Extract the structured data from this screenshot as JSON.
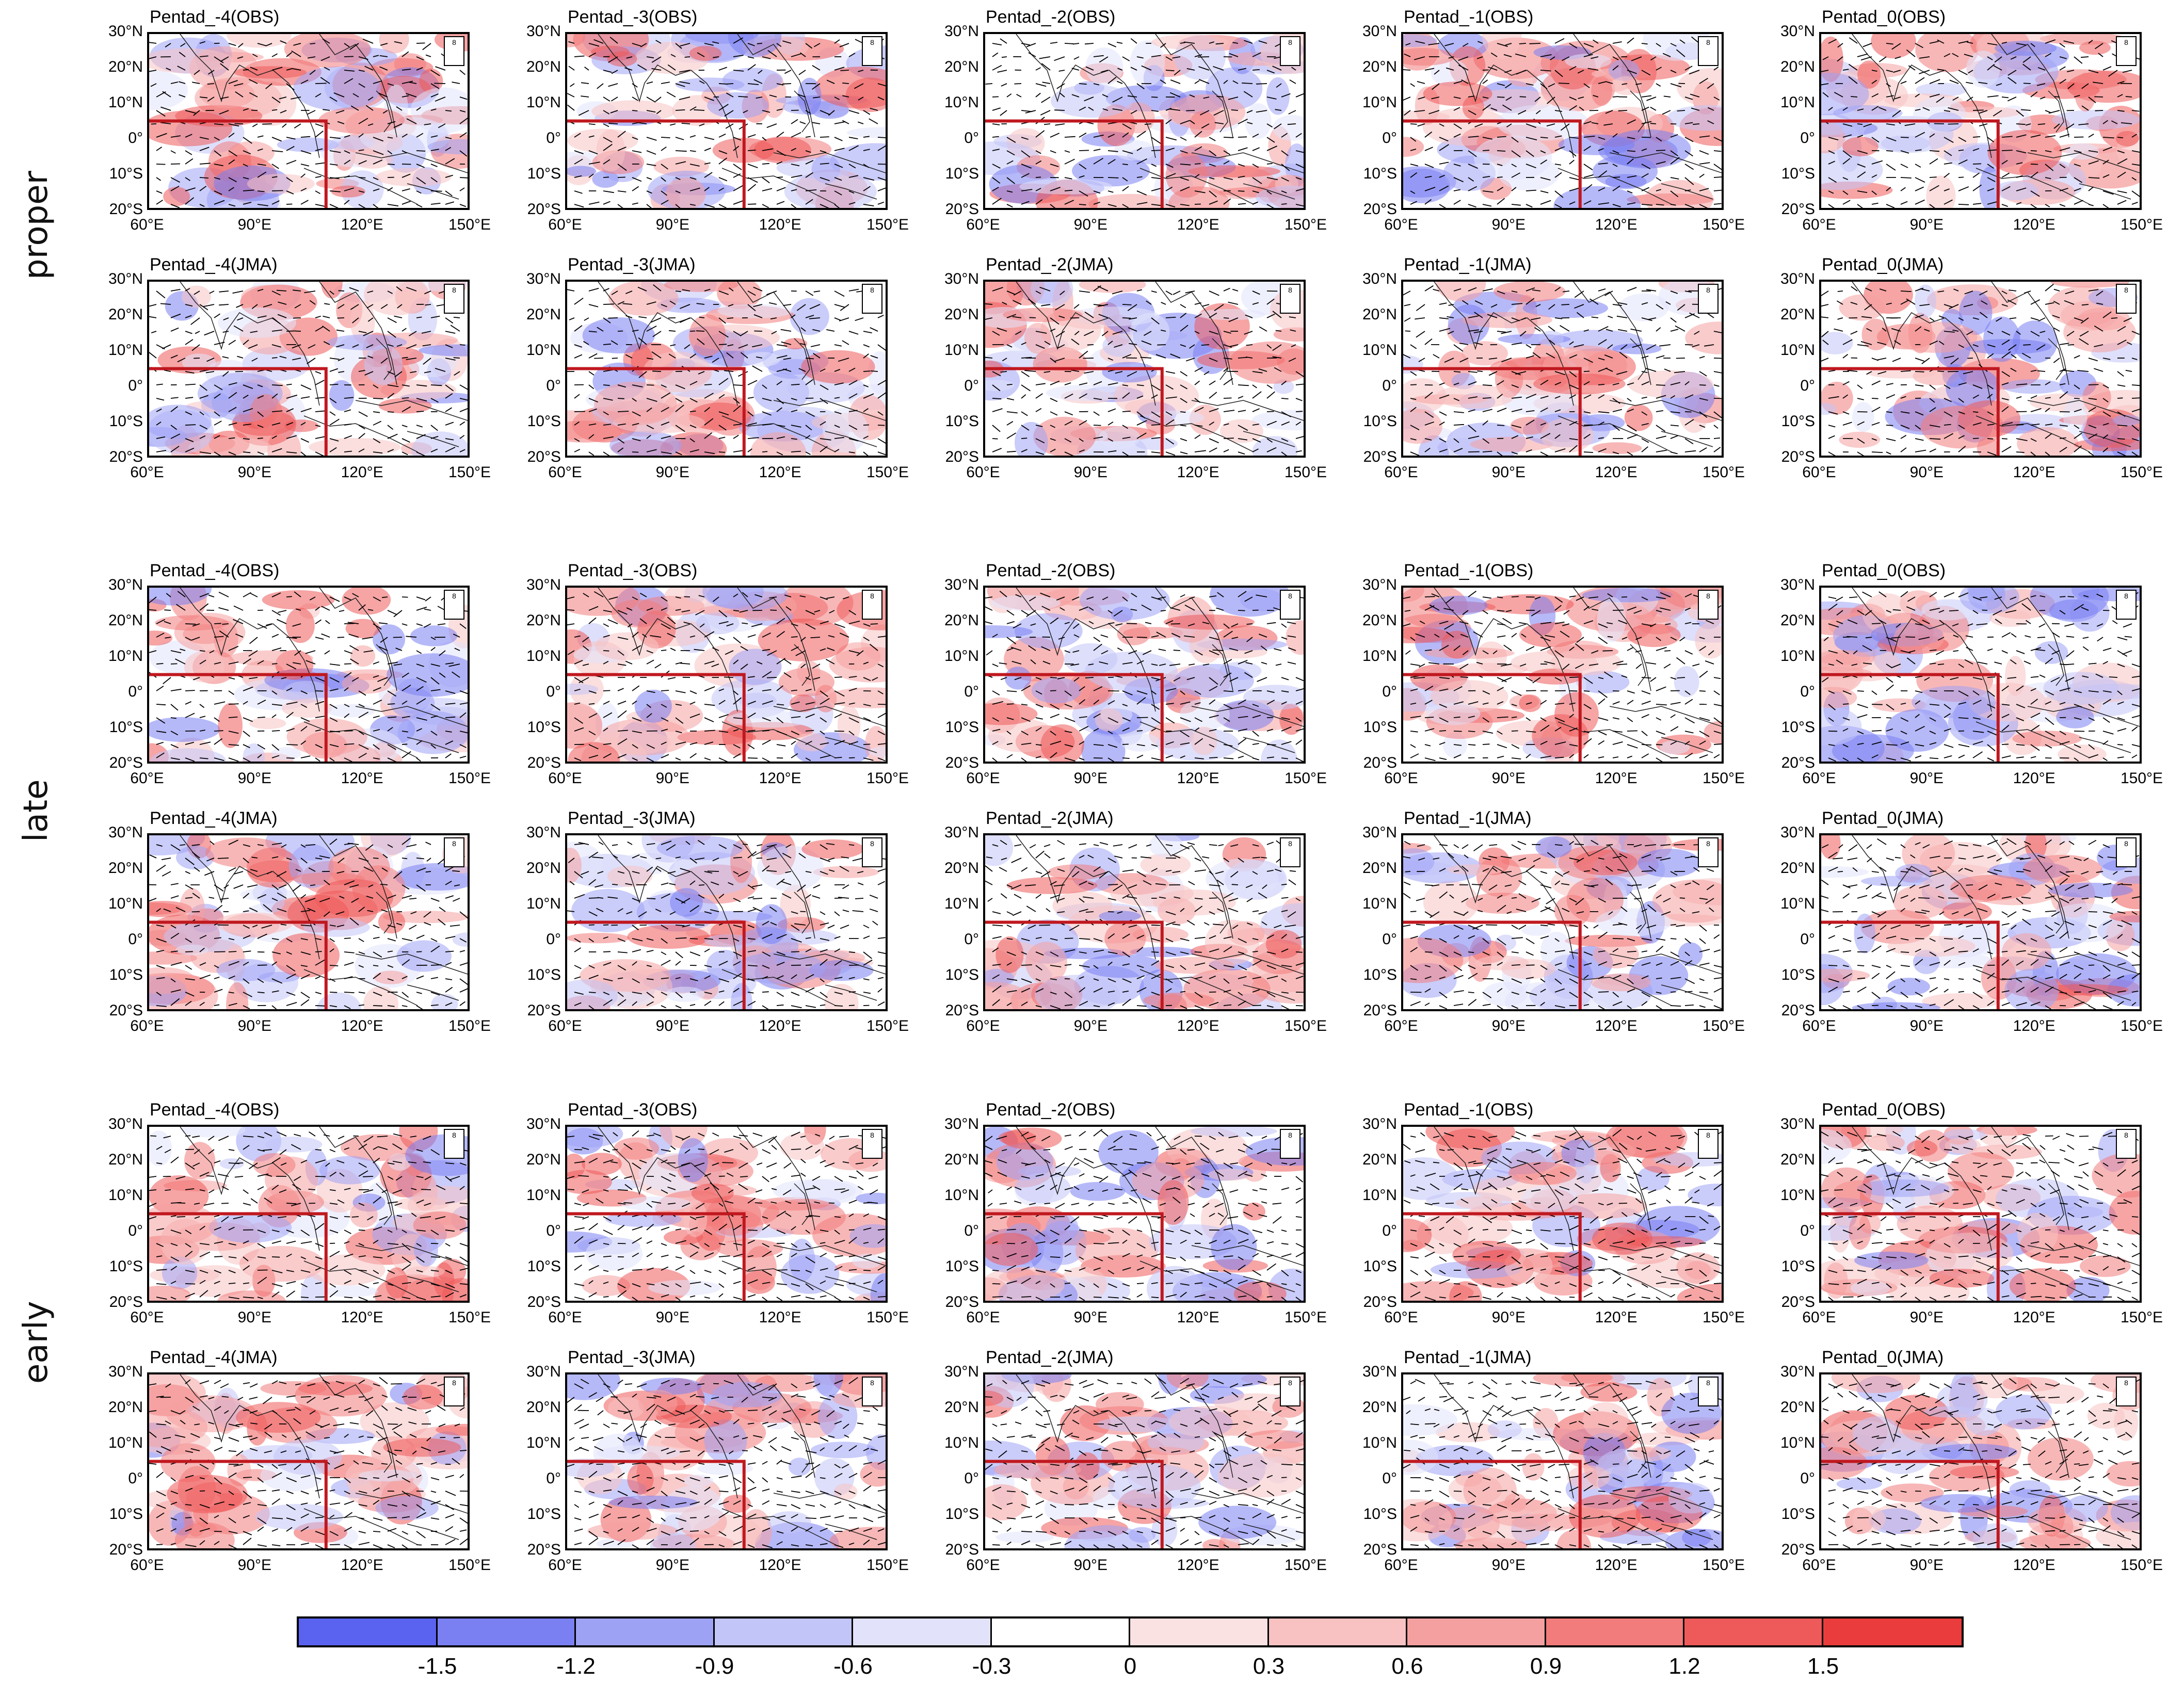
{
  "rows": [
    {
      "label": "proper",
      "panels": [
        [
          "Pentad_-4(OBS)",
          "Pentad_-3(OBS)",
          "Pentad_-2(OBS)",
          "Pentad_-1(OBS)",
          "Pentad_0(OBS)"
        ],
        [
          "Pentad_-4(JMA)",
          "Pentad_-3(JMA)",
          "Pentad_-2(JMA)",
          "Pentad_-1(JMA)",
          "Pentad_0(JMA)"
        ]
      ]
    },
    {
      "label": "late",
      "panels": [
        [
          "Pentad_-4(OBS)",
          "Pentad_-3(OBS)",
          "Pentad_-2(OBS)",
          "Pentad_-1(OBS)",
          "Pentad_0(OBS)"
        ],
        [
          "Pentad_-4(JMA)",
          "Pentad_-3(JMA)",
          "Pentad_-2(JMA)",
          "Pentad_-1(JMA)",
          "Pentad_0(JMA)"
        ]
      ]
    },
    {
      "label": "early",
      "panels": [
        [
          "Pentad_-4(OBS)",
          "Pentad_-3(OBS)",
          "Pentad_-2(OBS)",
          "Pentad_-1(OBS)",
          "Pentad_0(OBS)"
        ],
        [
          "Pentad_-4(JMA)",
          "Pentad_-3(JMA)",
          "Pentad_-2(JMA)",
          "Pentad_-1(JMA)",
          "Pentad_0(JMA)"
        ]
      ]
    }
  ],
  "lat_ticks": [
    "30°N",
    "20°N",
    "10°N",
    "0°",
    "10°S",
    "20°S"
  ],
  "lon_ticks": [
    "60°E",
    "90°E",
    "120°E",
    "150°E"
  ],
  "ref_vector_label": "8",
  "highlight_box": {
    "lon_min": 60,
    "lon_max": 110,
    "lat_min": -20,
    "lat_max": 5,
    "color": "#c0181f"
  },
  "colorbar": {
    "labels": [
      "-1.5",
      "-1.2",
      "-0.9",
      "-0.6",
      "-0.3",
      "0",
      "0.3",
      "0.6",
      "0.9",
      "1.2",
      "1.5"
    ],
    "colors": [
      "#5a62f0",
      "#7a80f2",
      "#9ea2f5",
      "#c2c5f8",
      "#e2e3fb",
      "#ffffff",
      "#fbe2e2",
      "#f8c2c2",
      "#f5a0a0",
      "#f27c7c",
      "#ee5a5a",
      "#ea3c3c"
    ]
  }
}
